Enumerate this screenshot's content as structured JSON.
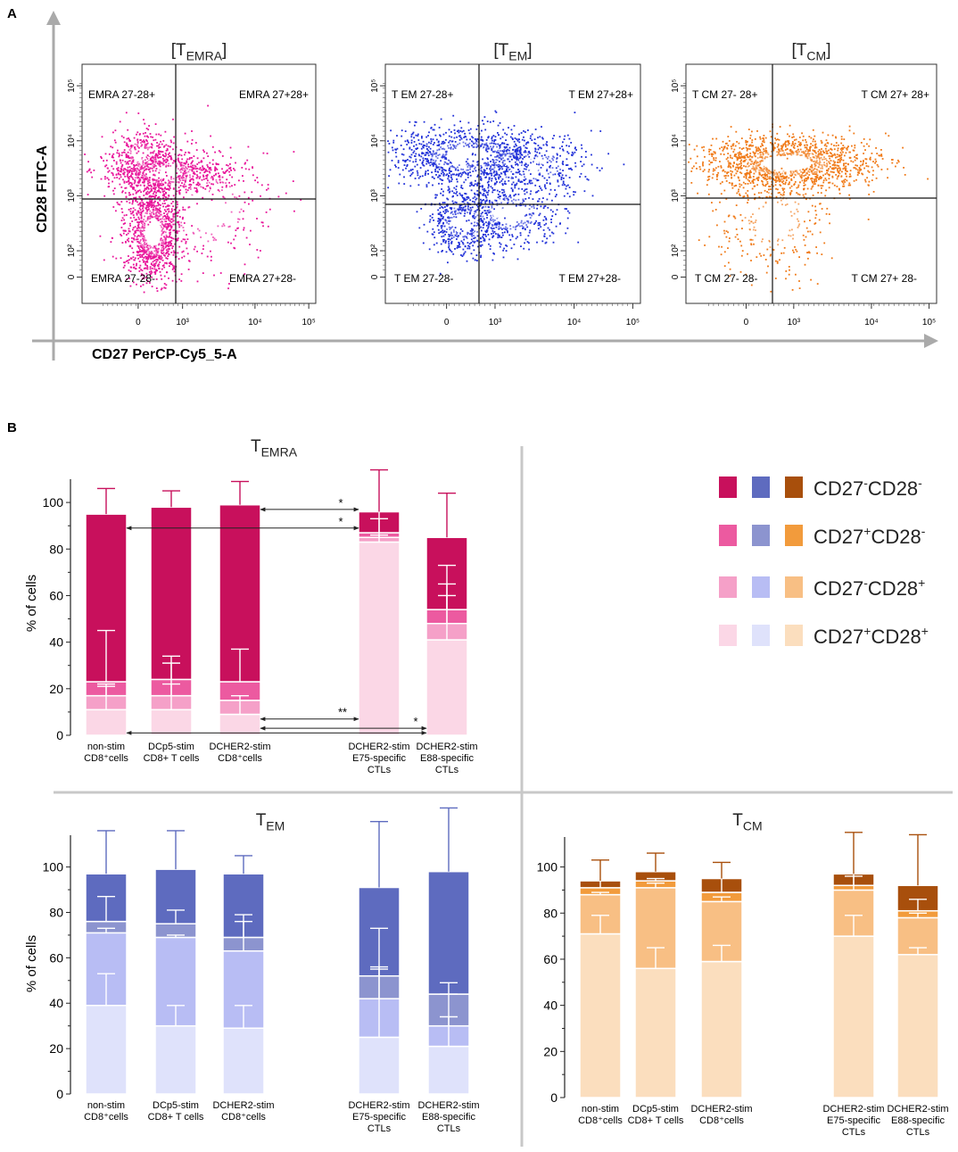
{
  "panel_labels": {
    "a": "A",
    "b": "B"
  },
  "flow": {
    "y_axis_label": "CD28 FITC-A",
    "x_axis_label": "CD27 PerCP-Cy5_5-A",
    "x_ticks": [
      "0",
      "10³",
      "10⁴",
      "10⁵"
    ],
    "y_ticks": [
      "0",
      "10²",
      "10³",
      "10⁴",
      "10⁵"
    ],
    "plots": [
      {
        "title_main": "[T",
        "title_sub": "EMRA",
        "title_end": "]",
        "color": "#e8149a",
        "quadrants": [
          "EMRA 27-28+",
          "EMRA 27+28+",
          "EMRA 27-28-",
          "EMRA 27+28-"
        ]
      },
      {
        "title_main": "[T",
        "title_sub": "EM",
        "title_end": "]",
        "color": "#2030d8",
        "quadrants": [
          "T EM 27-28+",
          "T EM 27+28+",
          "T EM 27-28-",
          "T EM 27+28-"
        ]
      },
      {
        "title_main": "[T",
        "title_sub": "CM",
        "title_end": "]",
        "color": "#f07a18",
        "quadrants": [
          "T CM 27- 28+",
          "T CM 27+ 28+",
          "T CM 27- 28-",
          "T CM 27+ 28-"
        ]
      }
    ]
  },
  "legend": {
    "colors": [
      [
        "#c8105c",
        "#5e6bbf",
        "#a84f0c"
      ],
      [
        "#ec5aa0",
        "#8c94cf",
        "#f29b3c"
      ],
      [
        "#f5a0c8",
        "#b8bdf4",
        "#f8bf84"
      ],
      [
        "#fbd7e6",
        "#dfe2fb",
        "#fbdebe"
      ]
    ],
    "entries": [
      {
        "a": "CD27",
        "sa": "-",
        "b": "CD28",
        "sb": "-"
      },
      {
        "a": "CD27",
        "sa": "+",
        "b": "CD28",
        "sb": "-"
      },
      {
        "a": "CD27",
        "sa": "-",
        "b": "CD28",
        "sb": "+"
      },
      {
        "a": "CD27",
        "sa": "+",
        "b": "CD28",
        "sb": "+"
      }
    ]
  },
  "chart_data": [
    {
      "type": "bar",
      "stacked": true,
      "title": "T",
      "title_sub": "EMRA",
      "ylabel": "% of cells",
      "ylim": [
        0,
        110
      ],
      "yticks": [
        0,
        20,
        40,
        60,
        80,
        100
      ],
      "groups": [
        {
          "line1": "non-stim",
          "line2": "CD8⁺cells",
          "line3": ""
        },
        {
          "line1": "DCp5-stim",
          "line2": "CD8+ T cells",
          "line3": ""
        },
        {
          "line1": "DCHER2-stim",
          "line2": "CD8⁺cells",
          "line3": ""
        },
        {
          "line1": "DCHER2-stim",
          "line2": "E75-specific",
          "line3": "CTLs"
        },
        {
          "line1": "DCHER2-stim",
          "line2": "E88-specific",
          "line3": "CTLs"
        }
      ],
      "colors": [
        "#fbd7e6",
        "#f5a0c8",
        "#ec5aa0",
        "#c8105c"
      ],
      "series": [
        {
          "name": "CD27+CD28+",
          "values": [
            11,
            11,
            9,
            83,
            41
          ]
        },
        {
          "name": "CD27-CD28+",
          "values": [
            6,
            6,
            6,
            2,
            7
          ]
        },
        {
          "name": "CD27+CD28-",
          "values": [
            6,
            7,
            8,
            2,
            6
          ]
        },
        {
          "name": "CD27-CD28-",
          "values": [
            72,
            74,
            76,
            9,
            31
          ]
        }
      ],
      "errors": [
        [
          [
            11,
            21
          ],
          [
            17,
            22
          ],
          [
            23,
            45
          ],
          [
            95,
            106
          ]
        ],
        [
          [
            11,
            22
          ],
          [
            17,
            31
          ],
          [
            24,
            34
          ],
          [
            98,
            105
          ]
        ],
        [
          [
            9,
            15
          ],
          [
            15,
            17
          ],
          [
            23,
            37
          ],
          [
            99,
            109
          ]
        ],
        [
          [
            83,
            86
          ],
          [
            85,
            93
          ],
          [
            87,
            97
          ],
          [
            96,
            114
          ]
        ],
        [
          [
            41,
            60
          ],
          [
            48,
            65
          ],
          [
            54,
            73
          ],
          [
            85,
            104
          ]
        ]
      ],
      "significance": [
        {
          "from": 2,
          "to": 3,
          "y": 97,
          "label": "*"
        },
        {
          "from": 0,
          "to": 3,
          "y": 89,
          "label": "*"
        },
        {
          "from": 2,
          "to": 3,
          "y": 7,
          "label": "**"
        },
        {
          "from": 2,
          "to": 4,
          "y": 3,
          "label": "*"
        },
        {
          "from": 0,
          "to": 4,
          "y": 1,
          "label": ""
        }
      ]
    },
    {
      "type": "bar",
      "stacked": true,
      "title": "T",
      "title_sub": "EM",
      "ylabel": "% of cells",
      "ylim": [
        0,
        114
      ],
      "yticks": [
        0,
        20,
        40,
        60,
        80,
        100
      ],
      "groups": [
        {
          "line1": "non-stim",
          "line2": "CD8⁺cells",
          "line3": ""
        },
        {
          "line1": "DCp5-stim",
          "line2": "CD8+ T cells",
          "line3": ""
        },
        {
          "line1": "DCHER2-stim",
          "line2": "CD8⁺cells",
          "line3": ""
        },
        {
          "line1": "DCHER2-stim",
          "line2": "E75-specific",
          "line3": "CTLs"
        },
        {
          "line1": "DCHER2-stim",
          "line2": "E88-specific",
          "line3": "CTLs"
        }
      ],
      "colors": [
        "#dfe2fb",
        "#b8bdf4",
        "#8c94cf",
        "#5e6bbf"
      ],
      "series": [
        {
          "name": "CD27+CD28+",
          "values": [
            39,
            30,
            29,
            25,
            21
          ]
        },
        {
          "name": "CD27-CD28+",
          "values": [
            32,
            39,
            34,
            17,
            9
          ]
        },
        {
          "name": "CD27+CD28-",
          "values": [
            5,
            6,
            6,
            10,
            14
          ]
        },
        {
          "name": "CD27-CD28-",
          "values": [
            21,
            24,
            28,
            39,
            54
          ]
        }
      ],
      "errors": [
        [
          [
            39,
            53
          ],
          [
            71,
            73
          ],
          [
            76,
            87
          ],
          [
            97,
            116
          ]
        ],
        [
          [
            30,
            39
          ],
          [
            69,
            70
          ],
          [
            75,
            81
          ],
          [
            99,
            116
          ]
        ],
        [
          [
            29,
            39
          ],
          [
            63,
            76
          ],
          [
            69,
            79
          ],
          [
            97,
            105
          ]
        ],
        [
          [
            25,
            55
          ],
          [
            42,
            56
          ],
          [
            52,
            73
          ],
          [
            91,
            120
          ]
        ],
        [
          [
            21,
            34
          ],
          [
            30,
            44
          ],
          [
            44,
            49
          ],
          [
            98,
            126
          ]
        ]
      ],
      "significance": []
    },
    {
      "type": "bar",
      "stacked": true,
      "title": "T",
      "title_sub": "CM",
      "ylabel": "",
      "ylim": [
        0,
        113
      ],
      "yticks": [
        0,
        20,
        40,
        60,
        80,
        100
      ],
      "groups": [
        {
          "line1": "non-stim",
          "line2": "CD8⁺cells",
          "line3": ""
        },
        {
          "line1": "DCp5-stim",
          "line2": "CD8+ T cells",
          "line3": ""
        },
        {
          "line1": "DCHER2-stim",
          "line2": "CD8⁺cells",
          "line3": ""
        },
        {
          "line1": "DCHER2-stim",
          "line2": "E75-specific",
          "line3": "CTLs"
        },
        {
          "line1": "DCHER2-stim",
          "line2": "E88-specific",
          "line3": "CTLs"
        }
      ],
      "colors": [
        "#fbdebe",
        "#f8bf84",
        "#f29b3c",
        "#a84f0c"
      ],
      "series": [
        {
          "name": "CD27+CD28+",
          "values": [
            71,
            56,
            59,
            70,
            62
          ]
        },
        {
          "name": "CD27-CD28+",
          "values": [
            17,
            35,
            26,
            20,
            16
          ]
        },
        {
          "name": "CD27+CD28-",
          "values": [
            3,
            3,
            4,
            2,
            3
          ]
        },
        {
          "name": "CD27-CD28-",
          "values": [
            3,
            4,
            6,
            5,
            11
          ]
        }
      ],
      "errors": [
        [
          [
            71,
            79
          ],
          [
            88,
            89
          ],
          [
            91,
            95
          ],
          [
            94,
            103
          ]
        ],
        [
          [
            56,
            65
          ],
          [
            91,
            93
          ],
          [
            94,
            95
          ],
          [
            98,
            106
          ]
        ],
        [
          [
            59,
            66
          ],
          [
            85,
            87
          ],
          [
            89,
            96
          ],
          [
            95,
            102
          ]
        ],
        [
          [
            70,
            79
          ],
          [
            90,
            106
          ],
          [
            92,
            96
          ],
          [
            97,
            115
          ]
        ],
        [
          [
            62,
            65
          ],
          [
            78,
            80
          ],
          [
            81,
            86
          ],
          [
            92,
            114
          ]
        ]
      ],
      "significance": []
    }
  ]
}
